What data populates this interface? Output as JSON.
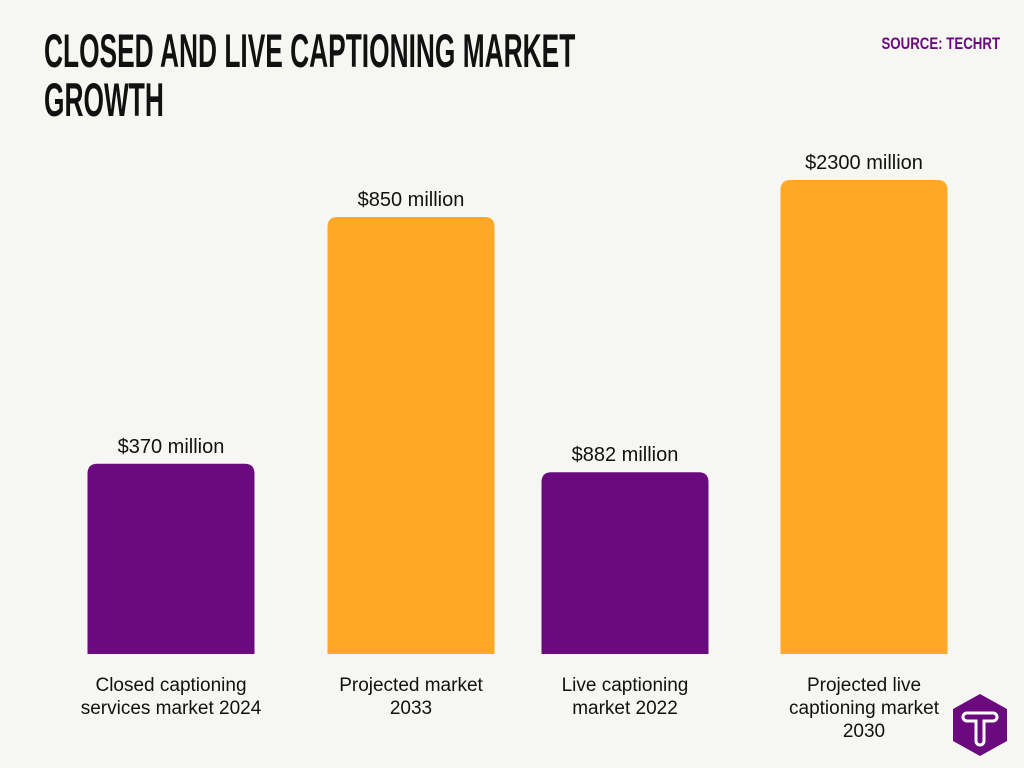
{
  "chart_data": {
    "type": "bar",
    "title": "CLOSED AND LIVE CAPTIONING MARKET GROWTH",
    "source": "SOURCE: TECHRT",
    "categories": [
      [
        "Closed captioning",
        "services market 2024"
      ],
      [
        "Projected market",
        "2033"
      ],
      [
        "Live captioning",
        "market 2022"
      ],
      [
        "Projected live",
        "captioning market",
        "2030"
      ]
    ],
    "values": [
      370,
      850,
      882,
      2300
    ],
    "unit": "million USD",
    "data_labels": [
      "$370 million",
      "$850 million",
      "$882 million",
      "$2300 million"
    ],
    "bar_colors": [
      "#6b0a7f",
      "#ffa726",
      "#6b0a7f",
      "#ffa726"
    ],
    "scale_groups": [
      [
        0,
        1
      ],
      [
        2,
        3
      ]
    ],
    "grid": false,
    "axes_visible": false
  },
  "colors": {
    "background": "#f6f6f2",
    "purple": "#6b0a7f",
    "orange": "#ffa726"
  },
  "logo": {
    "icon": "techrt-t-hexagon-icon",
    "text": "T"
  }
}
